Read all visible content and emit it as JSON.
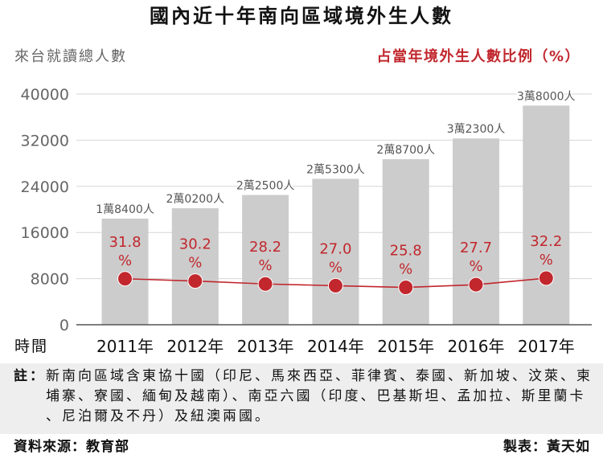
{
  "chart_data": {
    "type": "bar",
    "title": "國內近十年南向區域境外生人數",
    "ylabel": "來台就讀總人數",
    "y2label": "占當年境外生人數比例（%）",
    "xlabel": "時間",
    "categories": [
      "2011年",
      "2012年",
      "2013年",
      "2014年",
      "2015年",
      "2016年",
      "2017年"
    ],
    "ylim": [
      0,
      40000
    ],
    "y_ticks": [
      0,
      8000,
      16000,
      24000,
      32000,
      40000
    ],
    "grid": true,
    "series": [
      {
        "type": "bar",
        "values": [
          18400,
          20200,
          22500,
          25300,
          28700,
          32300,
          38000
        ],
        "labels": [
          "1萬8400人",
          "2萬0200人",
          "2萬2500人",
          "2萬5300人",
          "2萬8700人",
          "3萬2300人",
          "3萬8000人"
        ],
        "color": "#cccccc"
      },
      {
        "type": "line",
        "values": [
          31.8,
          30.2,
          28.2,
          27.0,
          25.8,
          27.7,
          32.2
        ],
        "labels": [
          "31.8",
          "30.2",
          "28.2",
          "27.0",
          "25.8",
          "27.7",
          "32.2"
        ],
        "label_unit": "%",
        "color": "#c1272d"
      }
    ]
  },
  "note": {
    "label": "註：",
    "text": "新南向區域含東協十國（印尼、馬來西亞、菲律賓、泰國、新加坡、汶萊、柬埔寨、寮國、緬甸及越南）、南亞六國（印度、巴基斯坦、孟加拉、斯里蘭卡、尼泊爾及不丹）及紐澳兩國。"
  },
  "footer": {
    "source": "資料來源：教育部",
    "credit": "製表：黃天如"
  }
}
